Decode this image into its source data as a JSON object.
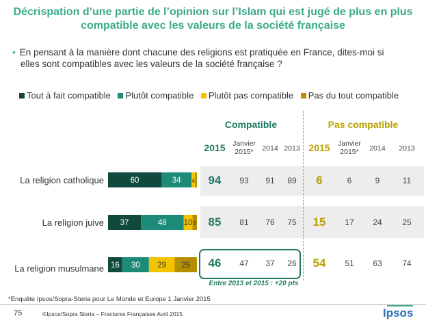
{
  "title_line1": "Décrispation d’une partie de l’opinion sur l’Islam qui est jugé de plus en plus",
  "title_line2": "compatible avec les valeurs de la société française",
  "question_line1": "En pensant à la manière dont chacune des religions est pratiquée en France, dites-moi si",
  "question_line2": "elles sont compatibles avec les valeurs de la société française ?",
  "header_compatible": "Compatible",
  "header_pas_compatible": "Pas compatible",
  "col_2015": "2015",
  "col_jan2015_line1": "Janvier",
  "col_jan2015_line2": "2015*",
  "col_2014": "2014",
  "col_2013": "2013",
  "note": "Entre 2013 et 2015 : +20 pts",
  "footnote": "*Enquête Ipsos/Sopra-Steria pour Le Monde et Europe 1  Janvier 2015",
  "page_number": "75",
  "copyright": "©Ipsos/Sopra Steria –  Fractures Françaises  Avril 2015",
  "logo": "Ipsos",
  "colors": {
    "accent": "#3aaa8a",
    "dark_green": "#1f7a63",
    "gold": "#b9a000"
  },
  "chart_data": {
    "type": "bar",
    "stacked": true,
    "orientation": "horizontal",
    "categories": [
      "La religion catholique",
      "La religion juive",
      "La religion musulmane"
    ],
    "series": [
      {
        "name": "Tout à fait compatible",
        "color": "#0f4a3c",
        "values": [
          60,
          37,
          16
        ]
      },
      {
        "name": "Plutôt compatible",
        "color": "#1e8a78",
        "values": [
          34,
          48,
          30
        ]
      },
      {
        "name": "Plutôt pas compatible",
        "color": "#f2c400",
        "values": [
          4,
          10,
          29
        ]
      },
      {
        "name": "Pas du tout compatible",
        "color": "#b58f00",
        "values": [
          2,
          5,
          25
        ]
      }
    ],
    "value_labels": [
      [
        "60",
        "34",
        "4",
        ""
      ],
      [
        "37",
        "48",
        "10",
        "5"
      ],
      [
        "16",
        "30",
        "29",
        "25"
      ]
    ],
    "table": [
      {
        "c2015": "94",
        "cjan": "93",
        "c2014": "91",
        "c2013": "89",
        "p2015": "6",
        "pjan": "6",
        "p2014": "9",
        "p2013": "11"
      },
      {
        "c2015": "85",
        "cjan": "81",
        "c2014": "76",
        "c2013": "75",
        "p2015": "15",
        "pjan": "17",
        "p2014": "24",
        "p2013": "25"
      },
      {
        "c2015": "46",
        "cjan": "47",
        "c2014": "37",
        "c2013": "26",
        "p2015": "54",
        "pjan": "51",
        "p2014": "63",
        "p2013": "74"
      }
    ]
  }
}
